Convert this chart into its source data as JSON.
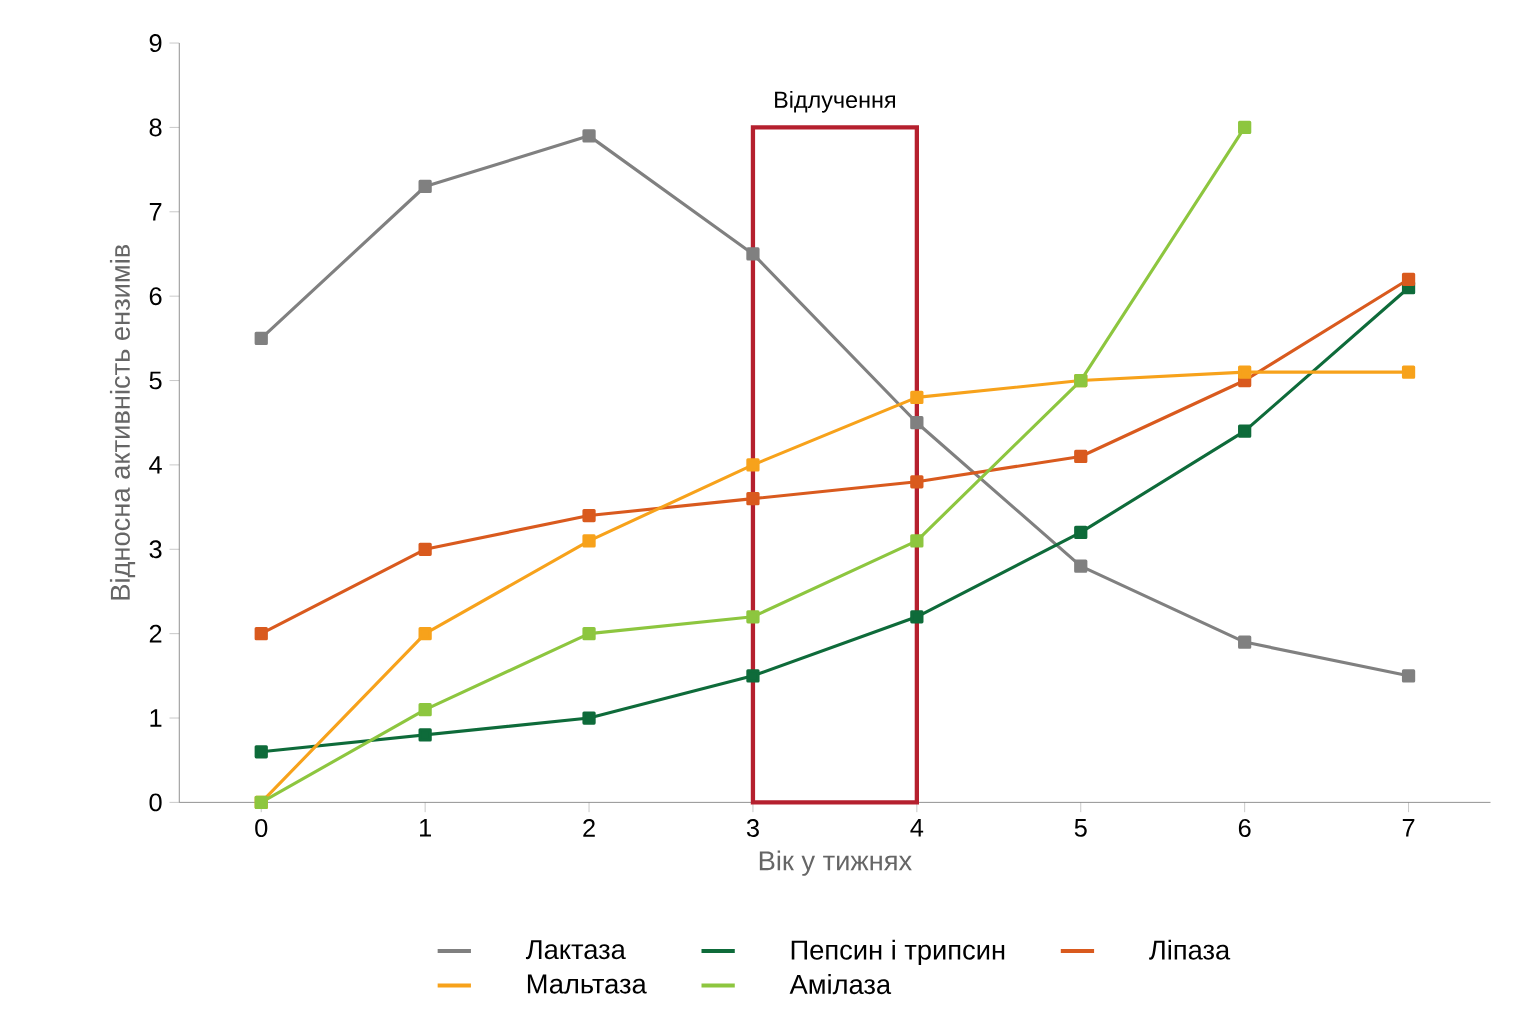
{
  "chart_data": {
    "type": "line",
    "xlabel": "Вік у тижнях",
    "ylabel": "Відносна активність ензимів",
    "x": [
      0,
      1,
      2,
      3,
      4,
      5,
      6,
      7
    ],
    "xlim": [
      -0.5,
      7.5
    ],
    "ylim": [
      0,
      9
    ],
    "xticks": [
      0,
      1,
      2,
      3,
      4,
      5,
      6,
      7
    ],
    "yticks": [
      0,
      1,
      2,
      3,
      4,
      5,
      6,
      7,
      8,
      9
    ],
    "marker": "square",
    "line_style": "solid",
    "grid": false,
    "legend": "bottom",
    "bands": [
      {
        "axis": "x",
        "from": 3,
        "to": 4,
        "label": "Відлучення",
        "color": "#b5202e"
      }
    ],
    "series": [
      {
        "name": "Лактаза",
        "color": "#808080",
        "values": [
          5.5,
          7.3,
          7.9,
          6.5,
          4.5,
          2.8,
          1.9,
          1.5
        ]
      },
      {
        "name": "Пепсин і трипсин",
        "color": "#0e6b3a",
        "values": [
          0.6,
          0.8,
          1.0,
          1.5,
          2.2,
          3.2,
          4.4,
          6.1
        ]
      },
      {
        "name": "Ліпаза",
        "color": "#d95a1e",
        "values": [
          2.0,
          3.0,
          3.4,
          3.6,
          3.8,
          4.1,
          5.0,
          6.2
        ]
      },
      {
        "name": "Мальтаза",
        "color": "#f7a21b",
        "values": [
          0,
          2.0,
          3.1,
          4.0,
          4.8,
          5.0,
          5.1,
          5.1
        ]
      },
      {
        "name": "Амілаза",
        "color": "#8dc63f",
        "values": [
          0,
          1.1,
          2.0,
          2.2,
          3.1,
          5.0,
          8.0,
          null
        ]
      }
    ]
  }
}
